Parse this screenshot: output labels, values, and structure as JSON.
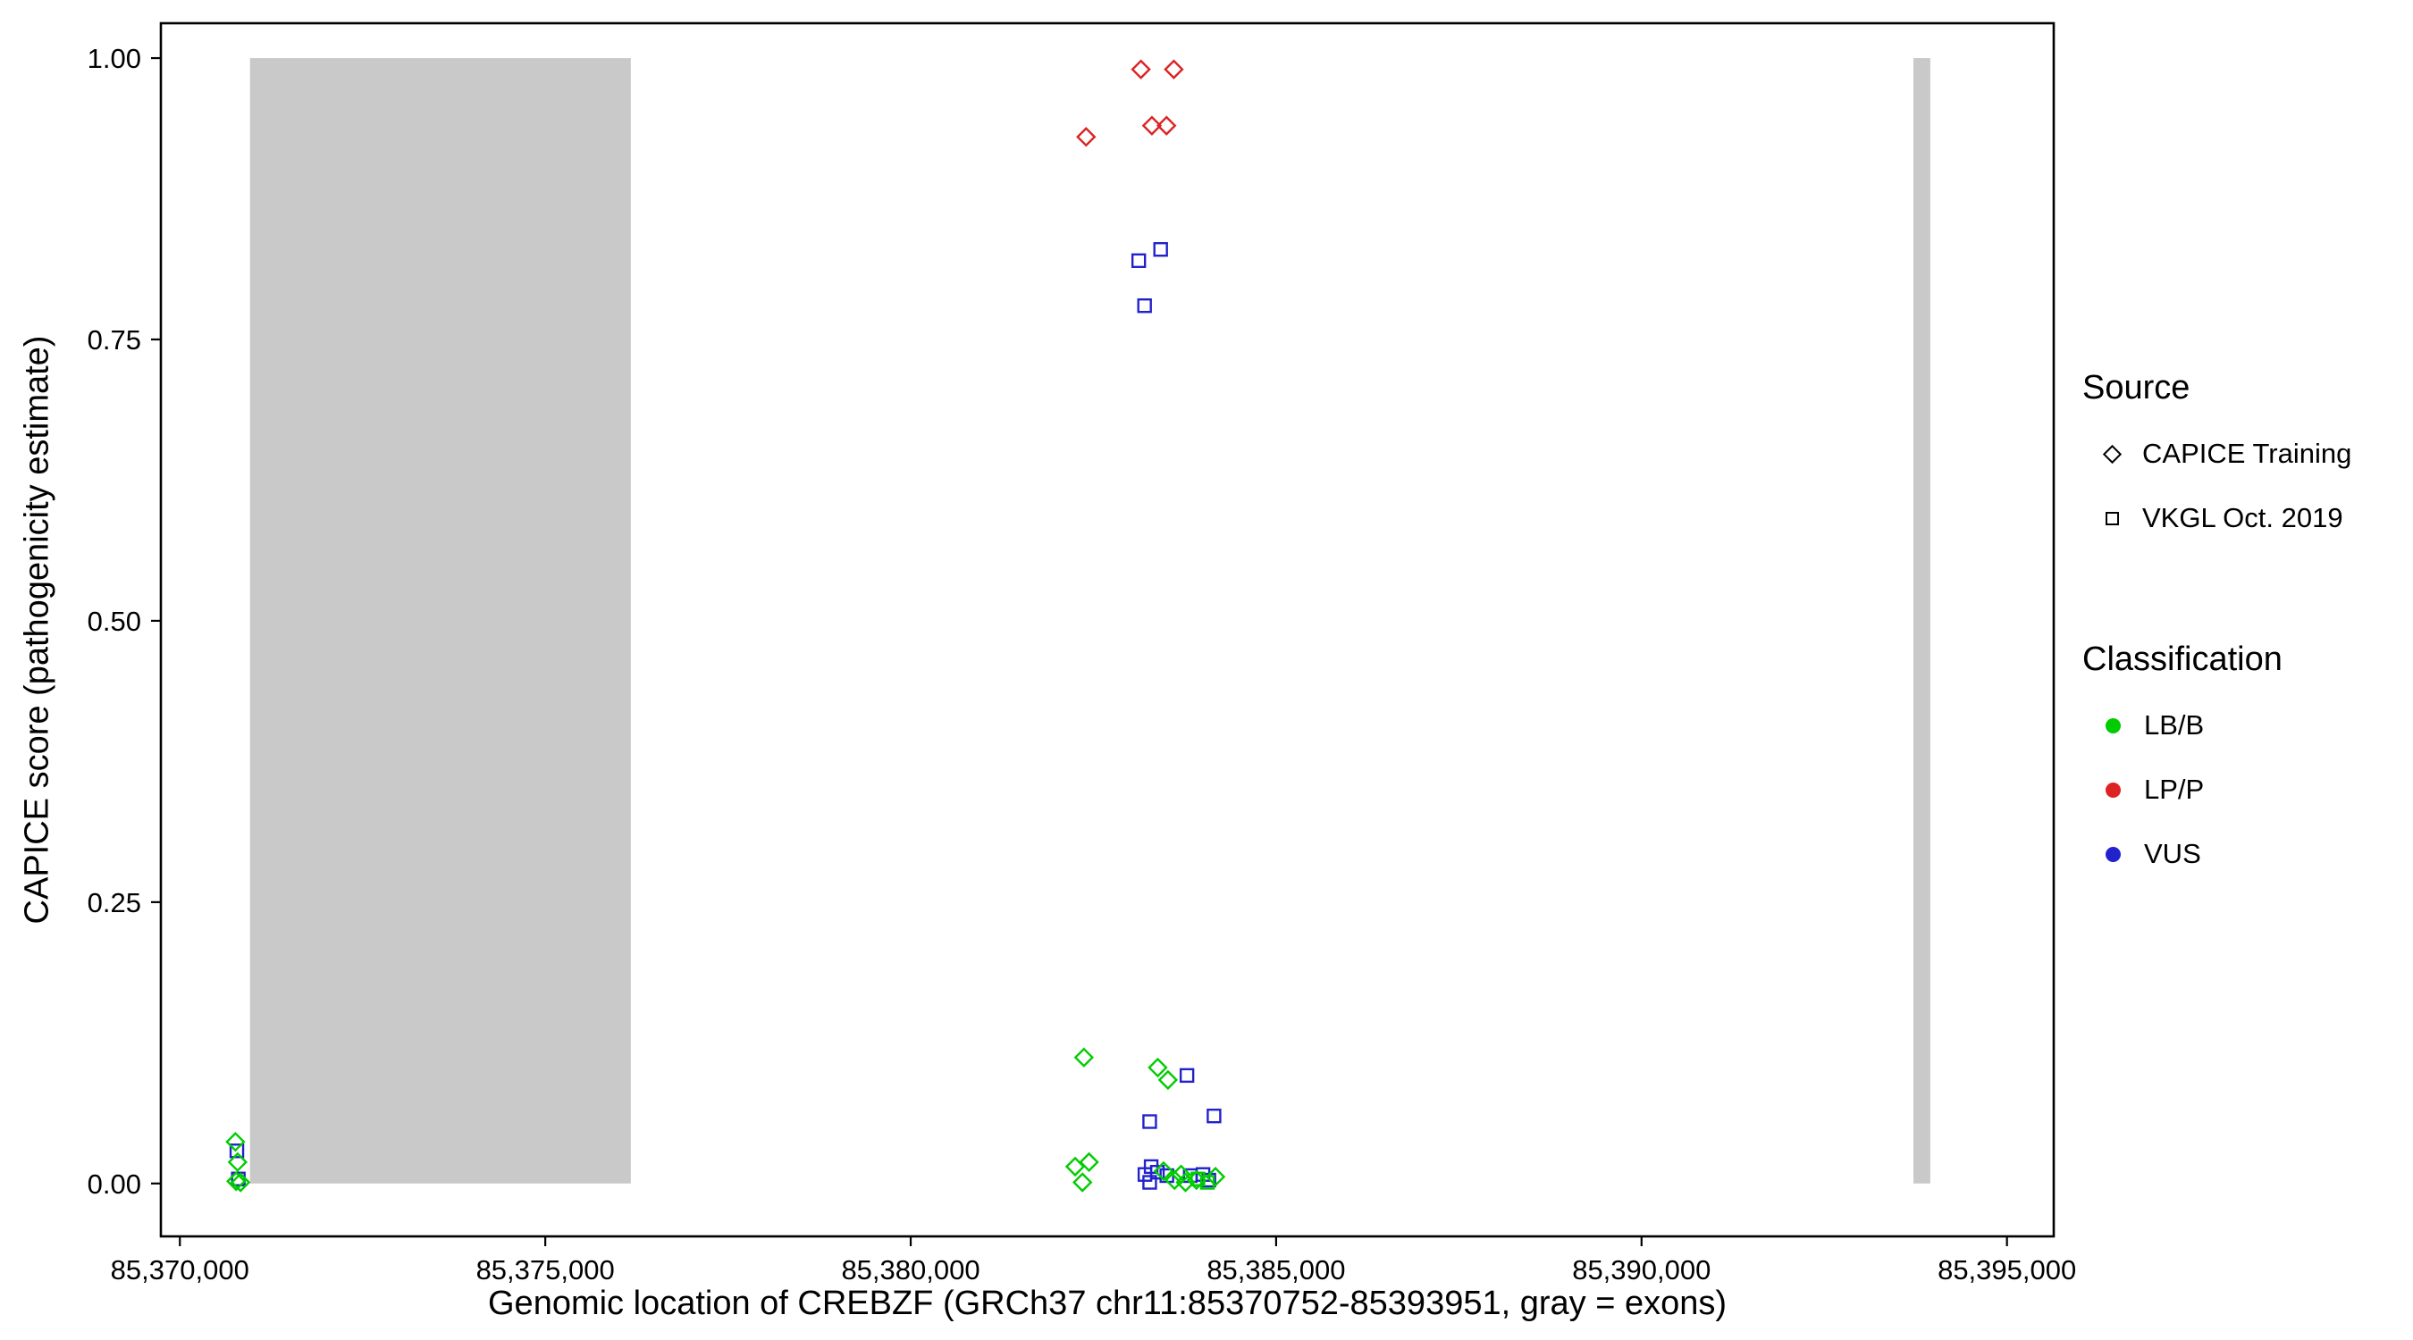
{
  "chart_data": {
    "type": "scatter",
    "title": "",
    "xlabel": "Genomic location of CREBZF (GRCh37 chr11:85370752-85393951, gray = exons)",
    "ylabel": "CAPICE score (pathogenicity estimate)",
    "x_axis": {
      "min": 85369740,
      "max": 85395640
    },
    "y_axis": {
      "min": -0.047,
      "max": 1.031
    },
    "x_ticks": [
      85370000,
      85375000,
      85380000,
      85385000,
      85390000,
      85395000
    ],
    "x_tick_labels": [
      "85,370,000",
      "85,375,000",
      "85,380,000",
      "85,385,000",
      "85,390,000",
      "85,395,000"
    ],
    "y_ticks": [
      0,
      0.25,
      0.5,
      0.75,
      1
    ],
    "y_tick_labels": [
      "0.00",
      "0.25",
      "0.50",
      "0.75",
      "1.00"
    ],
    "grid": "off",
    "legend_position": "right",
    "exon_color": "#C9C9C9",
    "exons": [
      {
        "start": 85370960,
        "end": 85376170
      },
      {
        "start": 85393720,
        "end": 85393951
      }
    ],
    "series": [
      {
        "name": "CAPICE Training / LP/P",
        "source": "CAPICE Training",
        "classification": "LP/P",
        "shape": "diamond",
        "color": "#DD2222",
        "points": [
          [
            85382400,
            0.93
          ],
          [
            85383150,
            0.99
          ],
          [
            85383300,
            0.94
          ],
          [
            85383500,
            0.94
          ],
          [
            85383600,
            0.99
          ]
        ]
      },
      {
        "name": "VKGL Oct. 2019 / VUS",
        "source": "VKGL Oct. 2019",
        "classification": "VUS",
        "shape": "square",
        "color": "#2222CC",
        "points": [
          [
            85383120,
            0.82
          ],
          [
            85383420,
            0.83
          ],
          [
            85383200,
            0.78
          ],
          [
            85383270,
            0.055
          ],
          [
            85384150,
            0.06
          ],
          [
            85383780,
            0.096
          ],
          [
            85383205,
            0.008
          ],
          [
            85383290,
            0.015
          ],
          [
            85383375,
            0.01
          ],
          [
            85383270,
            0.001
          ],
          [
            85383505,
            0.007
          ],
          [
            85383825,
            0.007
          ],
          [
            85384000,
            0.008
          ],
          [
            85384080,
            0.003
          ],
          [
            85370780,
            0.029
          ],
          [
            85370800,
            0.004
          ]
        ]
      },
      {
        "name": "CAPICE Training / LB/B",
        "source": "CAPICE Training",
        "classification": "LB/B",
        "shape": "diamond",
        "color": "#00CC00",
        "points": [
          [
            85370760,
            0.037
          ],
          [
            85370790,
            0.019
          ],
          [
            85370770,
            0.002
          ],
          [
            85370830,
            0.001
          ],
          [
            85382370,
            0.112
          ],
          [
            85382250,
            0.015
          ],
          [
            85382440,
            0.019
          ],
          [
            85382350,
            0.001
          ],
          [
            85383380,
            0.103
          ],
          [
            85383520,
            0.092
          ],
          [
            85383460,
            0.011
          ],
          [
            85383610,
            0.003
          ],
          [
            85383700,
            0.008
          ],
          [
            85383760,
            0.001
          ],
          [
            85383910,
            0.003
          ],
          [
            85384170,
            0.006
          ]
        ]
      },
      {
        "name": "VKGL Oct. 2019 / LB/B",
        "source": "VKGL Oct. 2019",
        "classification": "LB/B",
        "shape": "square",
        "color": "#00CC00",
        "points": [
          [
            85383930,
            0.004
          ],
          [
            85384060,
            0.001
          ]
        ]
      }
    ]
  },
  "legend": {
    "source_title": "Source",
    "source_items": [
      {
        "label": "CAPICE Training",
        "shape": "diamond"
      },
      {
        "label": "VKGL Oct. 2019",
        "shape": "square"
      }
    ],
    "classification_title": "Classification",
    "classification_items": [
      {
        "label": "LB/B",
        "color": "#00CC00"
      },
      {
        "label": "LP/P",
        "color": "#DD2222"
      },
      {
        "label": "VUS",
        "color": "#2222CC"
      }
    ]
  }
}
